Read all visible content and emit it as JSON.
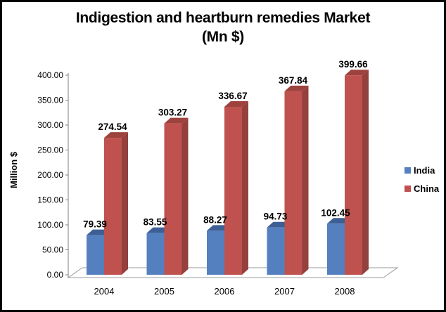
{
  "window": {
    "background": "#ffffff",
    "border_color": "#000000"
  },
  "title": {
    "line1": "Indigestion and heartburn remedies Market",
    "line2": "(Mn $)"
  },
  "chart_data": {
    "type": "bar",
    "style": "3d-clustered-column",
    "title": "Indigestion and heartburn remedies Market (Mn $)",
    "ylabel": "Million $",
    "xlabel": "",
    "categories": [
      "2004",
      "2005",
      "2006",
      "2007",
      "2008"
    ],
    "series": [
      {
        "name": "India",
        "values": [
          79.39,
          83.55,
          88.27,
          94.73,
          102.45
        ],
        "data_labels": [
          "79.39",
          "83.55",
          "88.27",
          "94.73",
          "102.45"
        ],
        "color": "#5580c0",
        "color_top": "#3e5f94",
        "color_side": "#36537f"
      },
      {
        "name": "China",
        "values": [
          274.54,
          303.27,
          336.67,
          367.84,
          399.66
        ],
        "data_labels": [
          "274.54",
          "303.27",
          "336.67",
          "367.84",
          "399.66"
        ],
        "color": "#bf514e",
        "color_top": "#9e423e",
        "color_side": "#94403c"
      }
    ],
    "ylim": [
      0,
      400
    ],
    "ytick_step": 50,
    "ytick_labels": [
      "0.00",
      "50.00",
      "100.00",
      "150.00",
      "200.00",
      "250.00",
      "300.00",
      "350.00",
      "400.00"
    ],
    "grid": false,
    "data_labels_shown": true,
    "legend_position": "right",
    "axis_color": "#7f7f7f",
    "floor_line_color": "#9b9b9b"
  }
}
